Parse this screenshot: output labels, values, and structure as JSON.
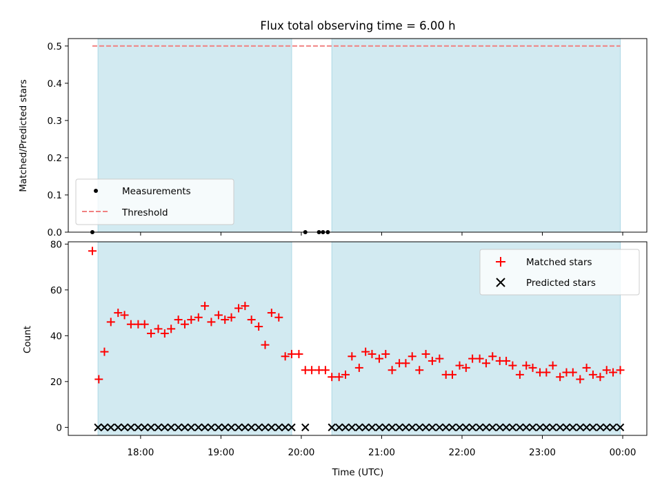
{
  "chart_data": {
    "title": "Flux total observing time = 6.00 h",
    "xlabel": "Time (UTC)",
    "x_tick_labels": [
      "18:00",
      "19:00",
      "20:00",
      "21:00",
      "22:00",
      "23:00",
      "00:00"
    ],
    "x_tick_hours": [
      18,
      19,
      20,
      21,
      22,
      23,
      24
    ],
    "xlim_hours": [
      17.1,
      24.3
    ],
    "shaded_intervals_hours": [
      [
        17.47,
        19.88
      ],
      [
        20.38,
        23.97
      ]
    ],
    "shade_color": "#add8e6",
    "panels": [
      {
        "type": "scatter",
        "ylabel": "Matched/Predicted stars",
        "ylim": [
          0,
          0.52
        ],
        "yticks": [
          "0.0",
          "0.1",
          "0.2",
          "0.3",
          "0.4",
          "0.5"
        ],
        "threshold": {
          "label": "Threshold",
          "value": 0.5,
          "x_range_hours": [
            17.4,
            23.97
          ],
          "color": "#f08080"
        },
        "measurements": {
          "label": "Measurements",
          "color": "#000000",
          "x_hours": [
            17.4,
            20.05,
            20.22,
            20.27,
            20.33
          ],
          "y": [
            0,
            0,
            0,
            0,
            0
          ]
        },
        "legend_loc": "lower-left"
      },
      {
        "type": "scatter",
        "ylabel": "Count",
        "ylim": [
          -3.5,
          81
        ],
        "yticks": [
          "0",
          "20",
          "40",
          "60",
          "80"
        ],
        "legend_loc": "upper-right",
        "series": [
          {
            "name": "Matched stars",
            "marker": "plus",
            "color": "#ff0000",
            "x_hours": [
              17.4,
              17.48,
              17.55,
              17.63,
              17.72,
              17.8,
              17.88,
              17.97,
              18.05,
              18.13,
              18.22,
              18.3,
              18.38,
              18.47,
              18.55,
              18.63,
              18.72,
              18.8,
              18.88,
              18.97,
              19.05,
              19.13,
              19.22,
              19.3,
              19.38,
              19.47,
              19.55,
              19.63,
              19.72,
              19.8,
              19.88,
              19.97,
              20.05,
              20.13,
              20.22,
              20.3,
              20.38,
              20.47,
              20.55,
              20.63,
              20.72,
              20.8,
              20.88,
              20.97,
              21.05,
              21.13,
              21.22,
              21.3,
              21.38,
              21.47,
              21.55,
              21.63,
              21.72,
              21.8,
              21.88,
              21.97,
              22.05,
              22.13,
              22.22,
              22.3,
              22.38,
              22.47,
              22.55,
              22.63,
              22.72,
              22.8,
              22.88,
              22.97,
              23.05,
              23.13,
              23.22,
              23.3,
              23.38,
              23.47,
              23.55,
              23.63,
              23.72,
              23.8,
              23.88,
              23.97
            ],
            "y": [
              77,
              21,
              33,
              46,
              50,
              49,
              45,
              45,
              45,
              41,
              43,
              41,
              43,
              47,
              45,
              47,
              48,
              53,
              46,
              49,
              47,
              48,
              52,
              53,
              47,
              44,
              36,
              50,
              48,
              31,
              32,
              32,
              25,
              25,
              25,
              25,
              22,
              22,
              23,
              31,
              26,
              33,
              32,
              30,
              32,
              25,
              28,
              28,
              31,
              25,
              32,
              29,
              30,
              23,
              23,
              27,
              26,
              30,
              30,
              28,
              31,
              29,
              29,
              27,
              23,
              27,
              26,
              24,
              24,
              27,
              22,
              24,
              24,
              21,
              26,
              23,
              22,
              25,
              24,
              25
            ]
          },
          {
            "name": "Predicted stars",
            "marker": "x",
            "color": "#000000",
            "x_hours": [
              17.47,
              17.55,
              17.63,
              17.72,
              17.8,
              17.88,
              17.97,
              18.05,
              18.13,
              18.22,
              18.3,
              18.38,
              18.47,
              18.55,
              18.63,
              18.72,
              18.8,
              18.88,
              18.97,
              19.05,
              19.13,
              19.22,
              19.3,
              19.38,
              19.47,
              19.55,
              19.63,
              19.72,
              19.8,
              19.88,
              20.05,
              20.38,
              20.47,
              20.55,
              20.63,
              20.72,
              20.8,
              20.88,
              20.97,
              21.05,
              21.13,
              21.22,
              21.3,
              21.38,
              21.47,
              21.55,
              21.63,
              21.72,
              21.8,
              21.88,
              21.97,
              22.05,
              22.13,
              22.22,
              22.3,
              22.38,
              22.47,
              22.55,
              22.63,
              22.72,
              22.8,
              22.88,
              22.97,
              23.05,
              23.13,
              23.22,
              23.3,
              23.38,
              23.47,
              23.55,
              23.63,
              23.72,
              23.8,
              23.88,
              23.97
            ],
            "y": [
              0,
              0,
              0,
              0,
              0,
              0,
              0,
              0,
              0,
              0,
              0,
              0,
              0,
              0,
              0,
              0,
              0,
              0,
              0,
              0,
              0,
              0,
              0,
              0,
              0,
              0,
              0,
              0,
              0,
              0,
              0,
              0,
              0,
              0,
              0,
              0,
              0,
              0,
              0,
              0,
              0,
              0,
              0,
              0,
              0,
              0,
              0,
              0,
              0,
              0,
              0,
              0,
              0,
              0,
              0,
              0,
              0,
              0,
              0,
              0,
              0,
              0,
              0,
              0,
              0,
              0,
              0,
              0,
              0,
              0,
              0,
              0,
              0,
              0,
              0
            ]
          }
        ]
      }
    ]
  }
}
